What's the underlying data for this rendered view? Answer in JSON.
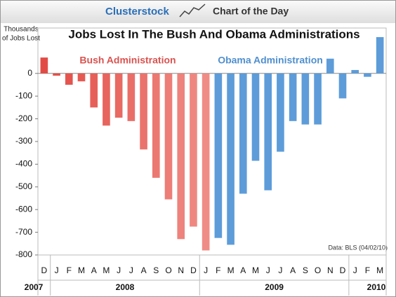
{
  "header": {
    "brand": "Clusterstock",
    "tagline": "Chart of the Day"
  },
  "chart_data": {
    "type": "bar",
    "title": "Jobs Lost In The Bush And Obama Administrations",
    "y_label": [
      "Thousands",
      "of Jobs Lost"
    ],
    "categories": [
      "D",
      "J",
      "F",
      "M",
      "A",
      "M",
      "J",
      "J",
      "A",
      "S",
      "O",
      "N",
      "D",
      "J",
      "F",
      "M",
      "A",
      "M",
      "J",
      "J",
      "A",
      "S",
      "O",
      "N",
      "D",
      "J",
      "F",
      "M"
    ],
    "years": [
      "2007",
      "2008",
      "2009",
      "2010"
    ],
    "values": [
      70,
      -10,
      -50,
      -35,
      -150,
      -230,
      -195,
      -210,
      -335,
      -460,
      -555,
      -730,
      -675,
      -780,
      -725,
      -755,
      -530,
      -385,
      -515,
      -345,
      -210,
      -225,
      -225,
      65,
      -110,
      15,
      -15,
      160
    ],
    "colors": [
      "#e24b45",
      "#e4504a",
      "#e5554f",
      "#e65a54",
      "#e75f59",
      "#e8645e",
      "#e96963",
      "#ea6e68",
      "#eb736d",
      "#ec7872",
      "#ed7d77",
      "#ee827c",
      "#ef8781",
      "#f08c86",
      "#5d9cd9",
      "#5d9cd9",
      "#5d9cd9",
      "#5d9cd9",
      "#5d9cd9",
      "#5d9cd9",
      "#5d9cd9",
      "#5d9cd9",
      "#5d9cd9",
      "#5d9cd9",
      "#5d9cd9",
      "#5d9cd9",
      "#5d9cd9",
      "#5d9cd9"
    ],
    "ylim": [
      -800,
      200
    ],
    "yticks": [
      -800,
      -700,
      -600,
      -500,
      -400,
      -300,
      -200,
      -100,
      0
    ],
    "annotations": [
      {
        "text": "Bush Administration",
        "color": "#d9534f"
      },
      {
        "text": "Obama Administration",
        "color": "#4f8fce"
      }
    ],
    "source": "Data: BLS (04/02/10)"
  }
}
